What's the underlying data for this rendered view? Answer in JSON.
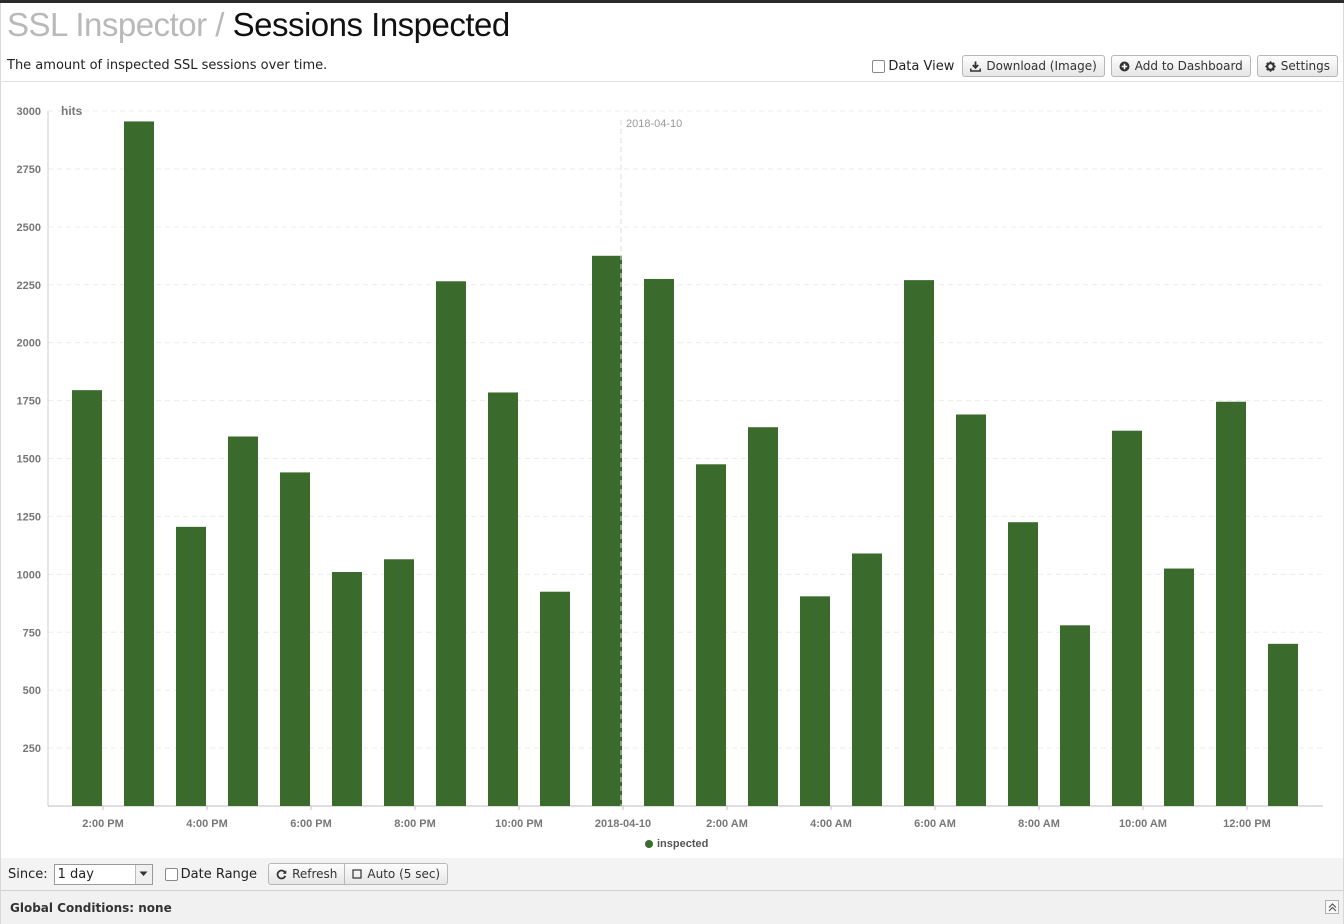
{
  "header": {
    "breadcrumb": "SSL Inspector",
    "separator": "/",
    "title": "Sessions Inspected",
    "subtitle": "The amount of inspected SSL sessions over time."
  },
  "toolbar": {
    "data_view_label": "Data View",
    "download_label": "Download (Image)",
    "add_dashboard_label": "Add to Dashboard",
    "settings_label": "Settings"
  },
  "chart_data": {
    "type": "bar",
    "ylabel": "hits",
    "ylim": [
      0,
      3000
    ],
    "yticks": [
      250,
      500,
      750,
      1000,
      1250,
      1500,
      1750,
      2000,
      2250,
      2500,
      2750,
      3000
    ],
    "xticks": [
      "2:00 PM",
      "4:00 PM",
      "6:00 PM",
      "8:00 PM",
      "10:00 PM",
      "2018-04-10",
      "2:00 AM",
      "4:00 AM",
      "6:00 AM",
      "8:00 AM",
      "10:00 AM",
      "12:00 PM"
    ],
    "marker_label": "2018-04-10",
    "legend": "bottom-center",
    "grid": true,
    "series": [
      {
        "name": "inspected",
        "color": "#3a6b2d",
        "values": [
          700,
          1795,
          2955,
          1205,
          1595,
          1440,
          1010,
          1065,
          2265,
          1785,
          925,
          2375,
          2275,
          1475,
          1635,
          905,
          1090,
          2270,
          1690,
          1225,
          780,
          1620,
          1025,
          1745,
          700
        ]
      }
    ]
  },
  "controls": {
    "since_label": "Since:",
    "since_value": "1 day",
    "date_range_label": "Date Range",
    "refresh_label": "Refresh",
    "auto_label": "Auto (5 sec)"
  },
  "footer": {
    "conditions_label": "Global Conditions: none"
  }
}
